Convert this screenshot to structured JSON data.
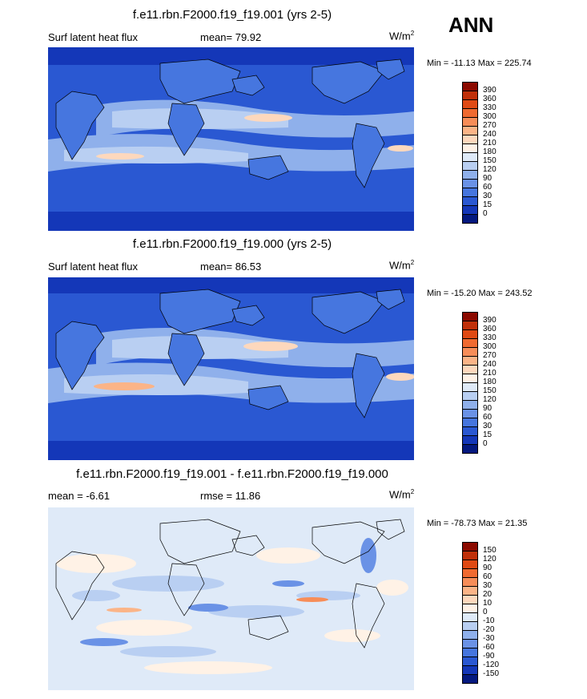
{
  "season": "ANN",
  "panels": [
    {
      "title": "f.e11.rbn.F2000.f19_f19.001 (yrs 2-5)",
      "left_label": "Surf latent heat flux",
      "stat_label": "mean=  79.92",
      "units": "W/m",
      "units_sup": "2",
      "minmax": "Min = -11.13 Max = 225.74",
      "kind": "abs"
    },
    {
      "title": "f.e11.rbn.F2000.f19_f19.000 (yrs 2-5)",
      "left_label": "Surf latent heat flux",
      "stat_label": "mean=  86.53",
      "units": "W/m",
      "units_sup": "2",
      "minmax": "Min = -15.20 Max = 243.52",
      "kind": "abs"
    },
    {
      "title": "f.e11.rbn.F2000.f19_f19.001 - f.e11.rbn.F2000.f19_f19.000",
      "left_label": "mean =  -6.61",
      "stat_label": "rmse =  11.86",
      "units": "W/m",
      "units_sup": "2",
      "minmax": "Min = -78.73 Max =  21.35",
      "kind": "diff"
    }
  ],
  "colorbars": {
    "abs": {
      "levels": [
        "390",
        "360",
        "330",
        "300",
        "270",
        "240",
        "210",
        "180",
        "150",
        "120",
        "90",
        "60",
        "30",
        "15",
        "0"
      ],
      "colors": [
        "#8b0a00",
        "#c0300a",
        "#e04a14",
        "#f06a30",
        "#f78d58",
        "#fbb487",
        "#fdd8bd",
        "#fff2e6",
        "#dfeaf8",
        "#b9cff2",
        "#8fb0eb",
        "#6a92e6",
        "#4676df",
        "#2a58d2",
        "#1437b8",
        "#04197f"
      ]
    },
    "diff": {
      "levels": [
        "150",
        "120",
        "90",
        "60",
        "30",
        "20",
        "10",
        "0",
        "-10",
        "-20",
        "-30",
        "-60",
        "-90",
        "-120",
        "-150"
      ],
      "colors": [
        "#8b0a00",
        "#c0300a",
        "#e04a14",
        "#f06a30",
        "#f78d58",
        "#fbb487",
        "#fdd8bd",
        "#fff2e6",
        "#dfeaf8",
        "#b9cff2",
        "#8fb0eb",
        "#6a92e6",
        "#4676df",
        "#2a58d2",
        "#1437b8",
        "#04197f"
      ]
    }
  }
}
